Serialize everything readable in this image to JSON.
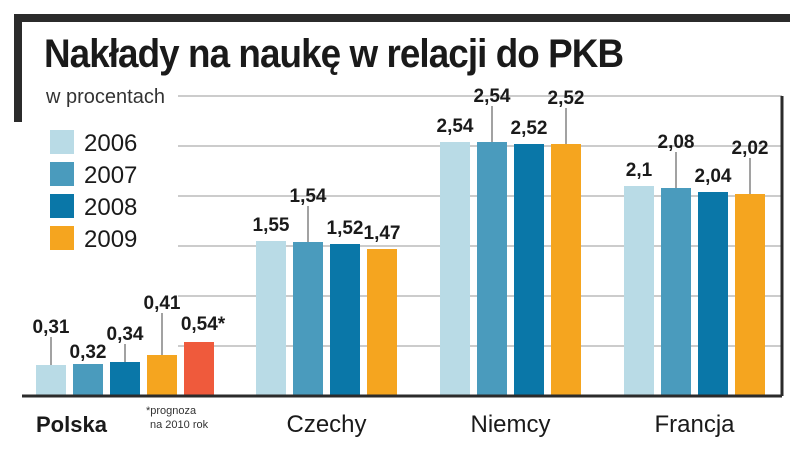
{
  "title": "Nakłady na naukę w relacji do PKB",
  "subtitle": "w procentach",
  "footnote_line1": "*prognoza",
  "footnote_line2": "na 2010 rok",
  "colors": {
    "2006": "#b9dbe6",
    "2007": "#4a9bbd",
    "2008": "#0a77a8",
    "2009": "#f5a51f",
    "2010": "#ef5a3c",
    "axis": "#2b2b2b",
    "grid": "#9a9a9a"
  },
  "chart_data": {
    "type": "bar",
    "title": "Nakłady na naukę w relacji do PKB",
    "subtitle": "w procentach",
    "categories": [
      "Polska",
      "Czechy",
      "Niemcy",
      "Francja"
    ],
    "series": [
      {
        "name": "2006",
        "values": [
          0.31,
          1.55,
          2.54,
          2.1
        ],
        "labels": [
          "0,31",
          "1,55",
          "2,54",
          "2,1"
        ]
      },
      {
        "name": "2007",
        "values": [
          0.32,
          1.54,
          2.54,
          2.08
        ],
        "labels": [
          "0,32",
          "1,54",
          "2,54",
          "2,08"
        ]
      },
      {
        "name": "2008",
        "values": [
          0.34,
          1.52,
          2.52,
          2.04
        ],
        "labels": [
          "0,34",
          "1,52",
          "2,52",
          "2,04"
        ]
      },
      {
        "name": "2009",
        "values": [
          0.41,
          1.47,
          2.52,
          2.02
        ],
        "labels": [
          "0,41",
          "1,47",
          "2,52",
          "2,02"
        ]
      }
    ],
    "extra_bar": {
      "category": "Polska",
      "value": 0.54,
      "label": "0,54*"
    },
    "ylim": [
      0,
      3
    ],
    "grid": true,
    "legend": "top-left"
  }
}
